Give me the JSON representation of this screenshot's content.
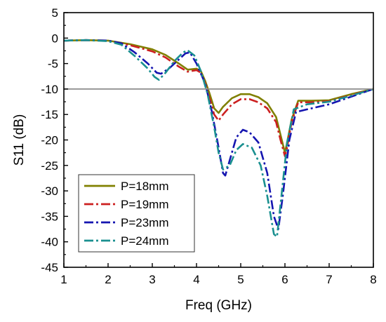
{
  "chart_data": {
    "type": "line",
    "title": "",
    "xlabel": "Freq (GHz)",
    "ylabel": "S11 (dB)",
    "xlim": [
      1,
      8
    ],
    "ylim": [
      -45,
      5
    ],
    "xticks": [
      1,
      2,
      3,
      4,
      5,
      6,
      7,
      8
    ],
    "yticks": [
      5,
      0,
      -5,
      -10,
      -15,
      -20,
      -25,
      -30,
      -35,
      -40,
      -45
    ],
    "reference_line": {
      "y": -10,
      "color": "#8c8c8c"
    },
    "grid": false,
    "legend_position": "bottom-left",
    "series": [
      {
        "name": "P=18mm",
        "color": "#808000",
        "dash": "solid",
        "points": [
          [
            1.0,
            -0.5
          ],
          [
            1.5,
            -0.4
          ],
          [
            2.0,
            -0.5
          ],
          [
            2.5,
            -1.2
          ],
          [
            3.0,
            -2.2
          ],
          [
            3.3,
            -3.3
          ],
          [
            3.6,
            -5.0
          ],
          [
            3.8,
            -6.2
          ],
          [
            4.0,
            -6.0
          ],
          [
            4.1,
            -6.5
          ],
          [
            4.2,
            -8.5
          ],
          [
            4.3,
            -11.0
          ],
          [
            4.4,
            -13.8
          ],
          [
            4.5,
            -14.7
          ],
          [
            4.6,
            -13.5
          ],
          [
            4.8,
            -11.8
          ],
          [
            5.0,
            -11.0
          ],
          [
            5.2,
            -11.0
          ],
          [
            5.4,
            -11.6
          ],
          [
            5.6,
            -12.8
          ],
          [
            5.8,
            -15.5
          ],
          [
            5.9,
            -19.0
          ],
          [
            6.0,
            -22.5
          ],
          [
            6.05,
            -20.5
          ],
          [
            6.15,
            -16.0
          ],
          [
            6.3,
            -12.3
          ],
          [
            6.6,
            -12.3
          ],
          [
            7.0,
            -12.2
          ],
          [
            7.5,
            -11.0
          ],
          [
            8.0,
            -10.0
          ]
        ]
      },
      {
        "name": "P=19mm",
        "color": "#cc2020",
        "dash": "dashdot",
        "points": [
          [
            1.0,
            -0.5
          ],
          [
            1.5,
            -0.4
          ],
          [
            2.0,
            -0.5
          ],
          [
            2.5,
            -1.4
          ],
          [
            3.0,
            -2.6
          ],
          [
            3.3,
            -3.8
          ],
          [
            3.6,
            -5.6
          ],
          [
            3.8,
            -6.6
          ],
          [
            4.0,
            -6.3
          ],
          [
            4.1,
            -6.8
          ],
          [
            4.2,
            -9.0
          ],
          [
            4.3,
            -12.0
          ],
          [
            4.4,
            -15.0
          ],
          [
            4.5,
            -16.2
          ],
          [
            4.6,
            -15.0
          ],
          [
            4.8,
            -13.0
          ],
          [
            5.0,
            -12.0
          ],
          [
            5.2,
            -12.0
          ],
          [
            5.4,
            -12.6
          ],
          [
            5.6,
            -13.8
          ],
          [
            5.8,
            -16.5
          ],
          [
            5.9,
            -20.0
          ],
          [
            6.0,
            -23.2
          ],
          [
            6.05,
            -21.5
          ],
          [
            6.15,
            -16.5
          ],
          [
            6.3,
            -12.6
          ],
          [
            6.6,
            -12.6
          ],
          [
            7.0,
            -12.4
          ],
          [
            7.5,
            -11.2
          ],
          [
            8.0,
            -10.0
          ]
        ]
      },
      {
        "name": "P=23mm",
        "color": "#1515b0",
        "dash": "dashdot",
        "points": [
          [
            1.0,
            -0.5
          ],
          [
            1.5,
            -0.4
          ],
          [
            2.0,
            -0.5
          ],
          [
            2.3,
            -1.0
          ],
          [
            2.6,
            -2.8
          ],
          [
            2.9,
            -5.0
          ],
          [
            3.1,
            -6.8
          ],
          [
            3.2,
            -7.0
          ],
          [
            3.4,
            -5.8
          ],
          [
            3.6,
            -4.2
          ],
          [
            3.75,
            -3.0
          ],
          [
            3.85,
            -2.8
          ],
          [
            4.0,
            -5.0
          ],
          [
            4.2,
            -9.0
          ],
          [
            4.35,
            -14.5
          ],
          [
            4.5,
            -21.5
          ],
          [
            4.6,
            -26.5
          ],
          [
            4.65,
            -27.0
          ],
          [
            4.75,
            -24.0
          ],
          [
            4.9,
            -19.5
          ],
          [
            5.05,
            -18.0
          ],
          [
            5.2,
            -18.5
          ],
          [
            5.4,
            -20.5
          ],
          [
            5.6,
            -26.5
          ],
          [
            5.75,
            -35.0
          ],
          [
            5.85,
            -37.5
          ],
          [
            5.95,
            -31.0
          ],
          [
            6.1,
            -20.0
          ],
          [
            6.25,
            -14.5
          ],
          [
            6.5,
            -14.0
          ],
          [
            7.0,
            -13.0
          ],
          [
            7.5,
            -11.5
          ],
          [
            8.0,
            -10.0
          ]
        ]
      },
      {
        "name": "P=24mm",
        "color": "#1a9090",
        "dash": "dashdot",
        "points": [
          [
            1.0,
            -0.5
          ],
          [
            1.5,
            -0.4
          ],
          [
            2.0,
            -0.6
          ],
          [
            2.3,
            -1.3
          ],
          [
            2.6,
            -3.5
          ],
          [
            2.9,
            -6.0
          ],
          [
            3.05,
            -7.6
          ],
          [
            3.15,
            -8.2
          ],
          [
            3.3,
            -6.8
          ],
          [
            3.5,
            -4.5
          ],
          [
            3.7,
            -2.8
          ],
          [
            3.8,
            -2.4
          ],
          [
            3.95,
            -3.4
          ],
          [
            4.1,
            -6.5
          ],
          [
            4.25,
            -11.0
          ],
          [
            4.4,
            -17.5
          ],
          [
            4.5,
            -22.5
          ],
          [
            4.6,
            -25.8
          ],
          [
            4.75,
            -25.0
          ],
          [
            4.9,
            -22.0
          ],
          [
            5.05,
            -20.8
          ],
          [
            5.25,
            -21.5
          ],
          [
            5.45,
            -25.0
          ],
          [
            5.6,
            -31.0
          ],
          [
            5.75,
            -38.5
          ],
          [
            5.82,
            -39.0
          ],
          [
            5.92,
            -31.0
          ],
          [
            6.05,
            -20.5
          ],
          [
            6.2,
            -14.0
          ],
          [
            6.5,
            -13.0
          ],
          [
            7.0,
            -12.5
          ],
          [
            7.5,
            -11.3
          ],
          [
            8.0,
            -10.0
          ]
        ]
      }
    ]
  }
}
